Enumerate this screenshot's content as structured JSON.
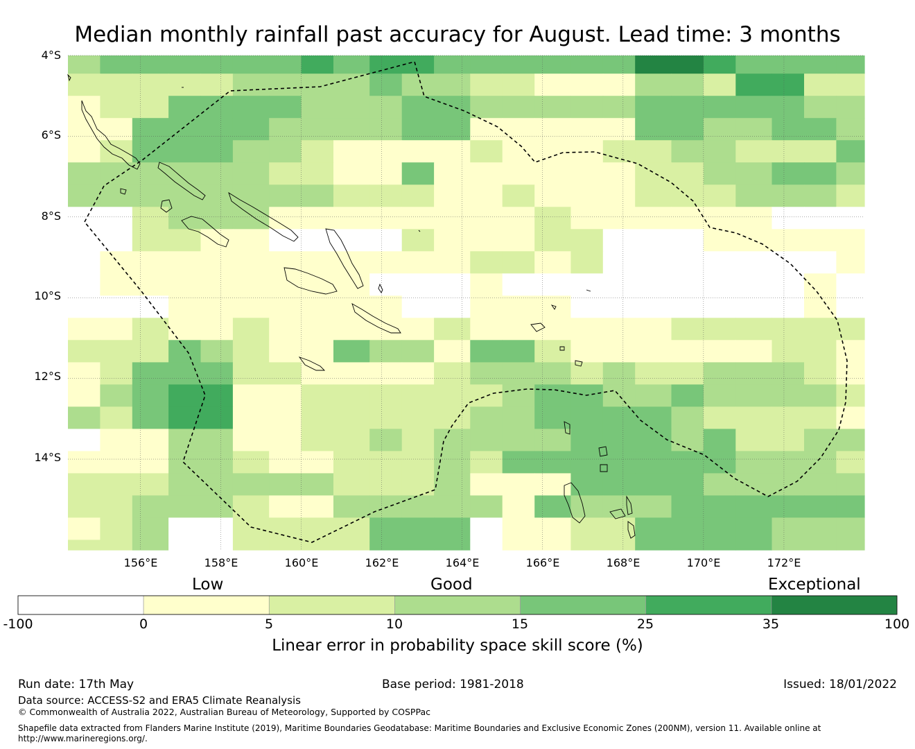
{
  "title": "Median monthly rainfall past accuracy for August. Lead time: 3 months",
  "map": {
    "lon_range": [
      154.2,
      174.0
    ],
    "lat_range": [
      -16.25,
      -4.0
    ],
    "lat_labels": [
      "4°S",
      "6°S",
      "8°S",
      "10°S",
      "12°S",
      "14°S"
    ],
    "lat_values": [
      -4,
      -6,
      -8,
      -10,
      -12,
      -14
    ],
    "lon_labels": [
      "156°E",
      "158°E",
      "160°E",
      "162°E",
      "164°E",
      "166°E",
      "168°E",
      "170°E",
      "172°E"
    ],
    "lon_values": [
      156,
      158,
      160,
      162,
      164,
      166,
      168,
      170,
      172
    ],
    "cell_lon_edges": [
      154.2,
      155.0,
      155.8,
      156.7,
      157.5,
      158.3,
      159.2,
      160.0,
      160.8,
      161.7,
      162.5,
      163.3,
      164.2,
      165.0,
      165.8,
      166.7,
      167.5,
      168.3,
      169.2,
      170.0,
      170.8,
      171.7,
      172.5,
      173.3,
      174.0
    ],
    "cell_lat_edges": [
      -4.0,
      -4.45,
      -5.0,
      -5.55,
      -6.1,
      -6.65,
      -7.2,
      -7.75,
      -8.3,
      -8.85,
      -9.4,
      -9.95,
      -10.5,
      -11.05,
      -11.6,
      -12.15,
      -12.7,
      -13.25,
      -13.8,
      -14.35,
      -14.9,
      -15.45,
      -16.0,
      -16.25
    ],
    "skill_category_rows": [
      "344444454554444446654444",
      "222223333433221113325522",
      "122444433344333334444433",
      "114444333344111114433443",
      "124443321111211122332224",
      "333333221141111112233443",
      "333333332221121112223332",
      "002333111111112111111000",
      "002211000021112200011111",
      "011111111111221200000001",
      "011111111000100000000010",
      "000111111100111000000010",
      "112112111112111111222222",
      "222432114331442111111221",
      "124442211112333232233321",
      "134551122222234433433332",
      "324551122222334444322221",
      "011331122323333444342233",
      "111332112223244444443332",
      "222333332223111444433333",
      "223332113333314333444444",
      "123002222444011224444333",
      "223002222444011224444333"
    ],
    "colors": {
      "c0": "#ffffff",
      "c1": "#ffffcc",
      "c2": "#d9f0a3",
      "c3": "#addd8e",
      "c4": "#78c679",
      "c5": "#41ab5d",
      "c6": "#238443",
      "boundary": "#000000",
      "gridline": "#555555"
    }
  },
  "legend": {
    "category_labels": [
      "Low",
      "Good",
      "Exceptional"
    ],
    "tick_labels": [
      "-100",
      "0",
      "5",
      "10",
      "15",
      "25",
      "35",
      "100"
    ],
    "segments": [
      {
        "from": -100,
        "to": 0,
        "color": "#ffffff"
      },
      {
        "from": 0,
        "to": 5,
        "color": "#ffffcc"
      },
      {
        "from": 5,
        "to": 10,
        "color": "#d9f0a3"
      },
      {
        "from": 10,
        "to": 15,
        "color": "#addd8e"
      },
      {
        "from": 15,
        "to": 25,
        "color": "#78c679"
      },
      {
        "from": 25,
        "to": 35,
        "color": "#41ab5d"
      },
      {
        "from": 35,
        "to": 100,
        "color": "#238443"
      }
    ],
    "title": "Linear error in probability space skill score (%)"
  },
  "footer": {
    "run_date": "Run date: 17th May",
    "base_period": "Base period: 1981-2018",
    "issued": "Issued: 18/01/2022",
    "data_source": "Data source: ACCESS-S2 and ERA5 Climate Reanalysis",
    "copyright": "© Commonwealth of Australia 2022, Australian Bureau of Meteorology, Supported by COSPPac",
    "shapefile_line1": "Shapefile data extracted from Flanders Marine Institute (2019), Maritime Boundaries Geodatabase: Maritime Boundaries and Exclusive Economic Zones (200NM), version 11. Available online at",
    "shapefile_line2": "http://www.marineregions.org/."
  }
}
